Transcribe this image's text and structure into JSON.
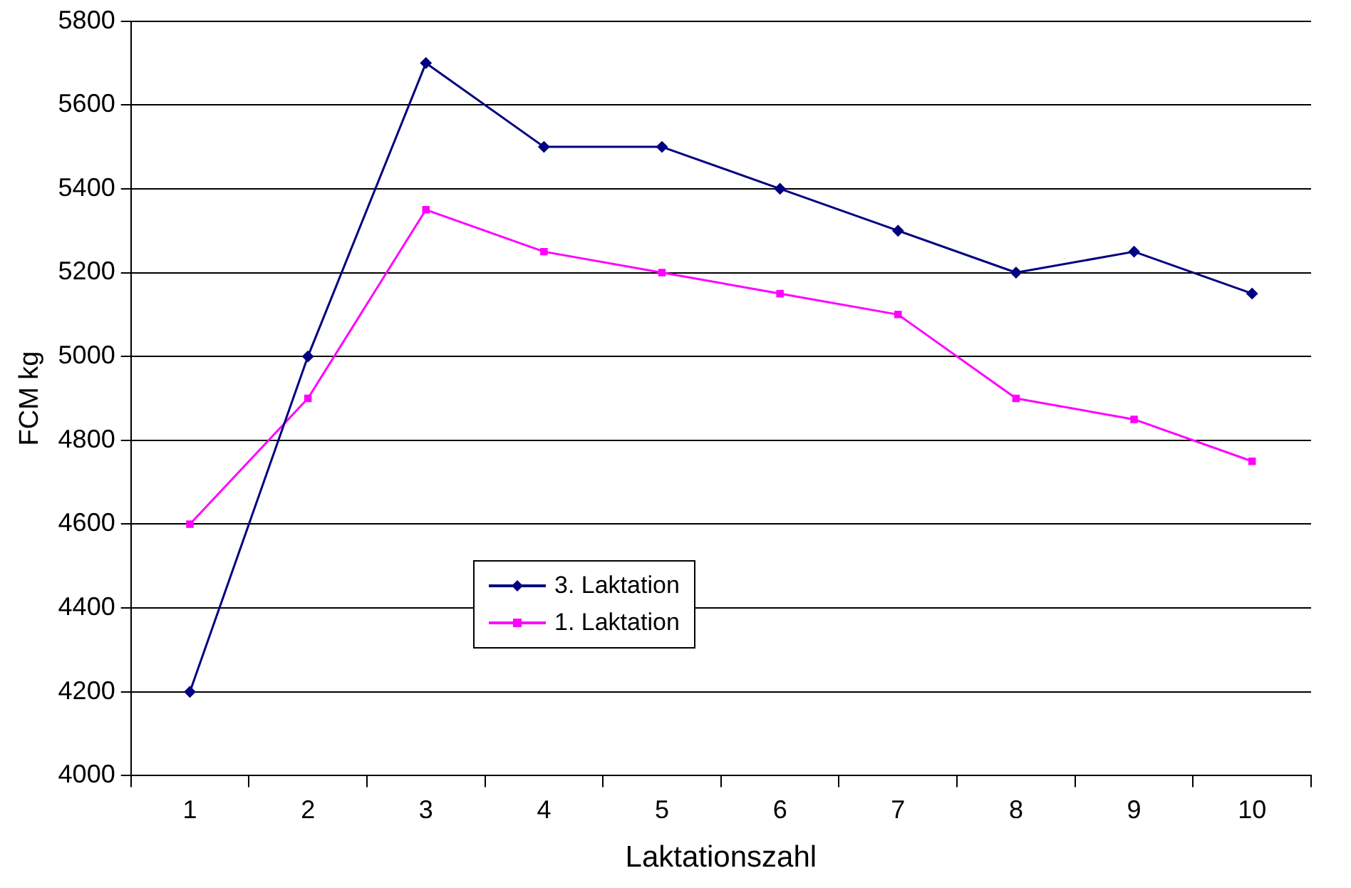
{
  "chart_data": {
    "type": "line",
    "xlabel": "Laktationszahl",
    "ylabel": "FCM kg",
    "categories": [
      "1",
      "2",
      "3",
      "4",
      "5",
      "6",
      "7",
      "8",
      "9",
      "10"
    ],
    "series": [
      {
        "name": "3. Laktation",
        "color": "#000080",
        "marker": "diamond",
        "values": [
          4200,
          5000,
          5700,
          5500,
          5500,
          5400,
          5300,
          5200,
          5250,
          5150
        ]
      },
      {
        "name": "1. Laktation",
        "color": "#ff00ff",
        "marker": "square",
        "values": [
          4600,
          4900,
          5350,
          5250,
          5200,
          5150,
          5100,
          4900,
          4850,
          4750
        ]
      }
    ],
    "ylim": [
      4000,
      5800
    ],
    "yticks": [
      4000,
      4200,
      4400,
      4600,
      4800,
      5000,
      5200,
      5400,
      5600,
      5800
    ],
    "grid": "y",
    "legend": "bottom",
    "line_style": "solid"
  }
}
